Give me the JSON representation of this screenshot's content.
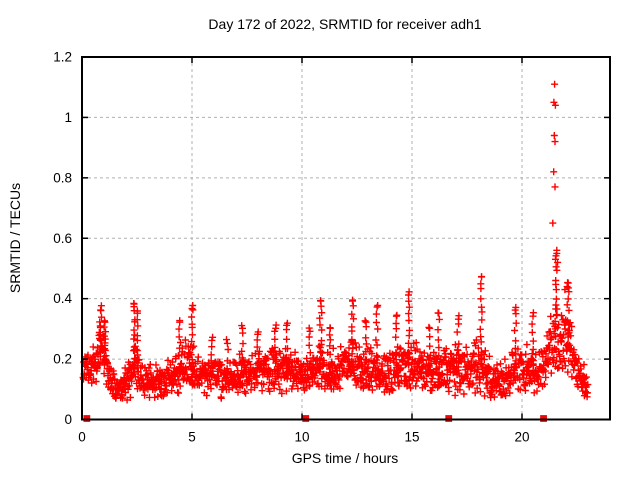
{
  "window": {
    "background": "#ffffff"
  },
  "colors": {
    "marker": "#ff0000",
    "grid": "#b0b0b0",
    "frame": "#000000",
    "text": "#000000",
    "background": "#ffffff"
  },
  "chart_data": {
    "type": "scatter",
    "title": "Day 172 of 2022, SRMTID for receiver adh1",
    "xlabel": "GPS time / hours",
    "ylabel": "SRMTID / TECUs",
    "xlim": [
      0,
      24
    ],
    "ylim": [
      0,
      1.2
    ],
    "xticks": [
      0,
      5,
      10,
      15,
      20
    ],
    "xtick_labels": [
      "0",
      "5",
      "10",
      "15",
      "20"
    ],
    "yticks": [
      0,
      0.2,
      0.4,
      0.6,
      0.8,
      1,
      1.2
    ],
    "ytick_labels": [
      "0",
      "0.2",
      "0.4",
      "0.6",
      "0.8",
      "1",
      "1.2"
    ],
    "grid": true,
    "legend": "none",
    "marker": {
      "shape": "plus",
      "color": "#ff0000",
      "size": 7,
      "stroke_width": 1.4
    },
    "series_name": "SRMTID",
    "dense_band": {
      "x_start": 0.05,
      "x_end": 23.0,
      "points_per_hour": 68,
      "seed": 20221721,
      "y_floor": 0.045,
      "envelope": [
        [
          0.0,
          0.17,
          0.05
        ],
        [
          0.5,
          0.18,
          0.07
        ],
        [
          0.9,
          0.22,
          0.1
        ],
        [
          1.3,
          0.13,
          0.06
        ],
        [
          1.8,
          0.1,
          0.05
        ],
        [
          2.4,
          0.17,
          0.12
        ],
        [
          2.9,
          0.12,
          0.06
        ],
        [
          3.5,
          0.13,
          0.06
        ],
        [
          4.1,
          0.14,
          0.07
        ],
        [
          4.7,
          0.17,
          0.1
        ],
        [
          5.1,
          0.16,
          0.09
        ],
        [
          5.7,
          0.15,
          0.07
        ],
        [
          6.3,
          0.14,
          0.07
        ],
        [
          6.9,
          0.13,
          0.07
        ],
        [
          7.5,
          0.16,
          0.08
        ],
        [
          8.2,
          0.17,
          0.08
        ],
        [
          8.9,
          0.16,
          0.08
        ],
        [
          9.5,
          0.16,
          0.08
        ],
        [
          10.1,
          0.15,
          0.07
        ],
        [
          10.8,
          0.18,
          0.09
        ],
        [
          11.4,
          0.16,
          0.08
        ],
        [
          12.0,
          0.18,
          0.09
        ],
        [
          12.6,
          0.17,
          0.09
        ],
        [
          13.2,
          0.16,
          0.08
        ],
        [
          13.9,
          0.15,
          0.08
        ],
        [
          14.6,
          0.18,
          0.09
        ],
        [
          15.1,
          0.18,
          0.09
        ],
        [
          15.7,
          0.15,
          0.08
        ],
        [
          16.4,
          0.15,
          0.08
        ],
        [
          17.0,
          0.17,
          0.09
        ],
        [
          17.6,
          0.16,
          0.08
        ],
        [
          18.1,
          0.18,
          0.1
        ],
        [
          18.7,
          0.13,
          0.06
        ],
        [
          19.3,
          0.14,
          0.07
        ],
        [
          19.8,
          0.17,
          0.09
        ],
        [
          20.4,
          0.16,
          0.08
        ],
        [
          21.0,
          0.17,
          0.09
        ],
        [
          21.5,
          0.28,
          0.13
        ],
        [
          22.0,
          0.27,
          0.12
        ],
        [
          22.4,
          0.18,
          0.09
        ],
        [
          22.7,
          0.13,
          0.06
        ],
        [
          23.0,
          0.12,
          0.05
        ]
      ]
    },
    "spikes": [
      [
        0.85,
        0.37,
        12
      ],
      [
        1.05,
        0.33,
        8
      ],
      [
        2.38,
        0.39,
        13
      ],
      [
        2.52,
        0.36,
        9
      ],
      [
        4.45,
        0.33,
        8
      ],
      [
        5.0,
        0.375,
        12
      ],
      [
        5.9,
        0.27,
        6
      ],
      [
        6.6,
        0.26,
        5
      ],
      [
        7.3,
        0.31,
        7
      ],
      [
        8.0,
        0.29,
        6
      ],
      [
        8.8,
        0.31,
        7
      ],
      [
        9.3,
        0.32,
        7
      ],
      [
        10.35,
        0.3,
        6
      ],
      [
        10.85,
        0.4,
        11
      ],
      [
        11.3,
        0.31,
        7
      ],
      [
        12.3,
        0.4,
        11
      ],
      [
        12.9,
        0.33,
        7
      ],
      [
        13.4,
        0.38,
        9
      ],
      [
        14.3,
        0.35,
        8
      ],
      [
        14.85,
        0.42,
        11
      ],
      [
        15.8,
        0.31,
        6
      ],
      [
        16.2,
        0.36,
        8
      ],
      [
        17.1,
        0.34,
        7
      ],
      [
        18.15,
        0.48,
        13
      ],
      [
        19.7,
        0.37,
        9
      ],
      [
        20.5,
        0.35,
        7
      ],
      [
        21.55,
        0.55,
        14
      ],
      [
        22.1,
        0.46,
        11
      ]
    ],
    "outlier_points": [
      [
        21.48,
        1.11
      ],
      [
        21.45,
        1.05
      ],
      [
        21.52,
        1.04
      ],
      [
        21.47,
        0.94
      ],
      [
        21.5,
        0.92
      ],
      [
        21.44,
        0.82
      ],
      [
        21.5,
        0.77
      ],
      [
        21.4,
        0.65
      ],
      [
        21.58,
        0.56
      ],
      [
        21.62,
        0.52
      ],
      [
        22.05,
        0.44
      ],
      [
        21.95,
        0.43
      ]
    ],
    "zero_points": [
      0.22,
      10.17,
      16.67,
      20.98
    ]
  }
}
